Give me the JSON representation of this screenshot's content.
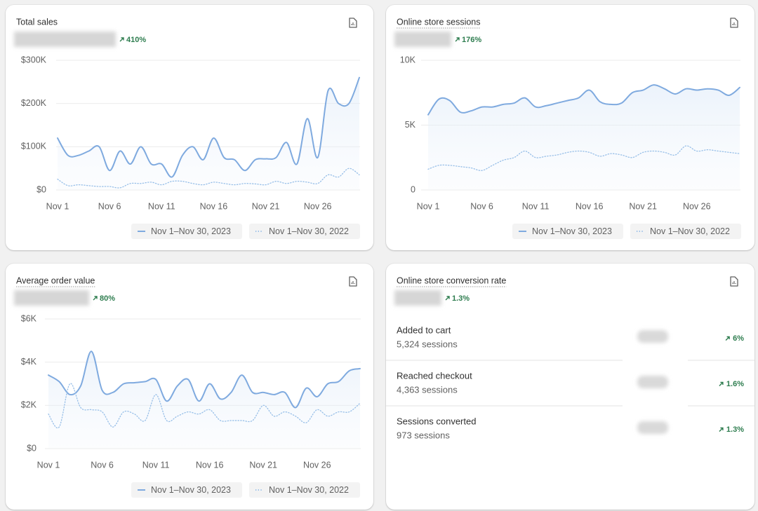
{
  "chart_data": [
    {
      "type": "line",
      "title": "Total sales",
      "change": "410%",
      "title_underline": false,
      "categories": [
        "Nov 1",
        null,
        null,
        null,
        null,
        "Nov 6",
        null,
        null,
        null,
        null,
        "Nov 11",
        null,
        null,
        null,
        null,
        "Nov 16",
        null,
        null,
        null,
        null,
        "Nov 21",
        null,
        null,
        null,
        null,
        "Nov 26",
        null,
        null,
        null,
        null
      ],
      "series": [
        {
          "name": "Nov 1–Nov 30, 2023",
          "color": "#7faadf",
          "style": "solid",
          "values": [
            120000,
            80000,
            80000,
            90000,
            100000,
            45000,
            90000,
            60000,
            100000,
            60000,
            60000,
            30000,
            80000,
            100000,
            70000,
            120000,
            75000,
            70000,
            45000,
            70000,
            72000,
            75000,
            110000,
            60000,
            165000,
            75000,
            230000,
            200000,
            200000,
            260000
          ]
        },
        {
          "name": "Nov 1–Nov 30, 2022",
          "color": "#98bfe8",
          "style": "dotted",
          "values": [
            25000,
            10000,
            12000,
            10000,
            8000,
            8000,
            5000,
            15000,
            15000,
            18000,
            12000,
            20000,
            20000,
            15000,
            12000,
            18000,
            15000,
            12000,
            15000,
            14000,
            12000,
            20000,
            15000,
            20000,
            18000,
            15000,
            35000,
            30000,
            50000,
            35000
          ]
        }
      ],
      "ylim": [
        0,
        300000
      ],
      "yticks": [
        {
          "value": 0,
          "label": "$0"
        },
        {
          "value": 100000,
          "label": "$100K"
        },
        {
          "value": 200000,
          "label": "$200K"
        },
        {
          "value": 300000,
          "label": "$300K"
        }
      ],
      "grid": true
    },
    {
      "type": "line",
      "title": "Online store sessions",
      "change": "176%",
      "title_underline": true,
      "categories": [
        "Nov 1",
        null,
        null,
        null,
        null,
        "Nov 6",
        null,
        null,
        null,
        null,
        "Nov 11",
        null,
        null,
        null,
        null,
        "Nov 16",
        null,
        null,
        null,
        null,
        "Nov 21",
        null,
        null,
        null,
        null,
        "Nov 26",
        null,
        null,
        null,
        null
      ],
      "series": [
        {
          "name": "Nov 1–Nov 30, 2023",
          "color": "#7faadf",
          "style": "solid",
          "values": [
            5800,
            7000,
            6900,
            6000,
            6100,
            6400,
            6400,
            6600,
            6700,
            7100,
            6400,
            6500,
            6700,
            6900,
            7100,
            7700,
            6800,
            6600,
            6700,
            7500,
            7700,
            8100,
            7800,
            7400,
            7800,
            7700,
            7800,
            7700,
            7300,
            7900
          ]
        },
        {
          "name": "Nov 1–Nov 30, 2022",
          "color": "#98bfe8",
          "style": "dotted",
          "values": [
            1600,
            1900,
            1900,
            1800,
            1700,
            1500,
            1900,
            2300,
            2500,
            3000,
            2500,
            2600,
            2700,
            2900,
            3000,
            2900,
            2600,
            2800,
            2700,
            2500,
            2900,
            3000,
            2900,
            2700,
            3400,
            3000,
            3100,
            3000,
            2900,
            2800
          ]
        }
      ],
      "ylim": [
        0,
        10000
      ],
      "yticks": [
        0,
        {
          "value": 5000,
          "label": "5K"
        },
        {
          "value": 10000,
          "label": "10K"
        }
      ],
      "grid": true
    },
    {
      "type": "line",
      "title": "Average order value",
      "change": "80%",
      "title_underline": true,
      "categories": [
        "Nov 1",
        null,
        null,
        null,
        null,
        "Nov 6",
        null,
        null,
        null,
        null,
        "Nov 11",
        null,
        null,
        null,
        null,
        "Nov 16",
        null,
        null,
        null,
        null,
        "Nov 21",
        null,
        null,
        null,
        null,
        "Nov 26",
        null,
        null,
        null,
        null
      ],
      "series": [
        {
          "name": "Nov 1–Nov 30, 2023",
          "color": "#7faadf",
          "style": "solid",
          "values": [
            3400,
            3100,
            2500,
            2900,
            4500,
            2700,
            2600,
            3000,
            3050,
            3100,
            3200,
            2200,
            2900,
            3200,
            2200,
            3000,
            2300,
            2600,
            3400,
            2600,
            2600,
            2500,
            2600,
            1900,
            2800,
            2400,
            3000,
            3100,
            3600,
            3700
          ]
        },
        {
          "name": "Nov 1–Nov 30, 2022",
          "color": "#98bfe8",
          "style": "dotted",
          "values": [
            1600,
            1000,
            3000,
            1900,
            1800,
            1700,
            1000,
            1700,
            1600,
            1300,
            2500,
            1300,
            1500,
            1700,
            1600,
            1800,
            1300,
            1300,
            1300,
            1300,
            2000,
            1500,
            1700,
            1500,
            1200,
            1800,
            1500,
            1700,
            1700,
            2100
          ]
        }
      ],
      "ylim": [
        0,
        6000
      ],
      "yticks": [
        {
          "value": 0,
          "label": "$0"
        },
        {
          "value": 2000,
          "label": "$2K"
        },
        {
          "value": 4000,
          "label": "$4K"
        },
        {
          "value": 6000,
          "label": "$6K"
        }
      ],
      "grid": true
    }
  ],
  "conversion": {
    "title": "Online store conversion rate",
    "change": "1.3%",
    "rows": [
      {
        "label": "Added to cart",
        "sessions": "5,324 sessions",
        "change": "6%"
      },
      {
        "label": "Reached checkout",
        "sessions": "4,363 sessions",
        "change": "1.6%"
      },
      {
        "label": "Sessions converted",
        "sessions": "973 sessions",
        "change": "1.3%"
      }
    ]
  }
}
